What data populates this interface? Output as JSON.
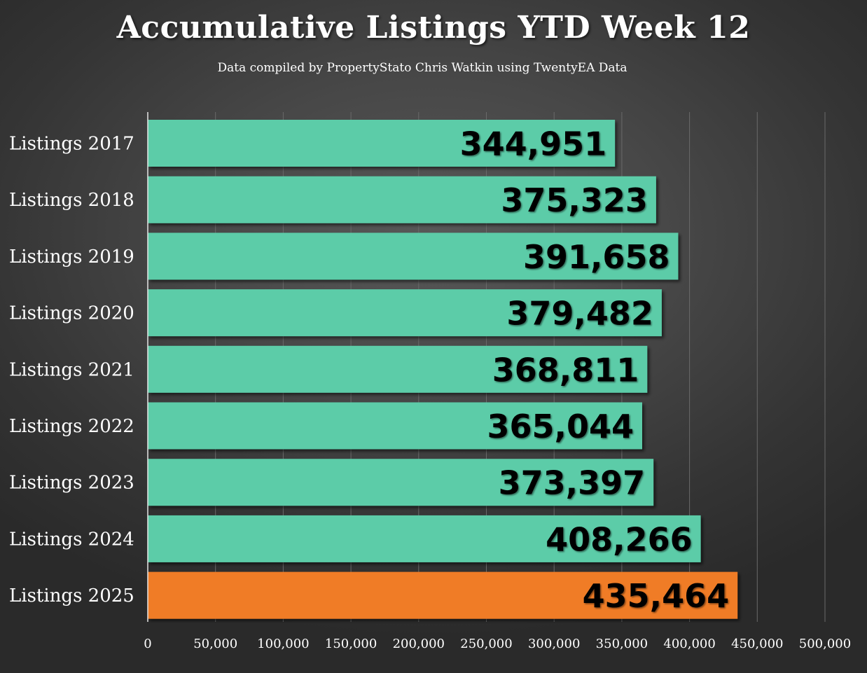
{
  "chart_data": {
    "type": "bar",
    "orientation": "horizontal",
    "title": "Accumulative Listings YTD Week 12",
    "subtitle": "Data compiled by PropertyStato Chris Watkin using TwentyEA Data",
    "categories": [
      "Listings 2017",
      "Listings 2018",
      "Listings 2019",
      "Listings 2020",
      "Listings 2021",
      "Listings 2022",
      "Listings 2023",
      "Listings 2024",
      "Listings 2025"
    ],
    "values": [
      344951,
      375323,
      391658,
      379482,
      368811,
      365044,
      373397,
      408266,
      435464
    ],
    "data_labels": [
      "344,951",
      "375,323",
      "391,658",
      "379,482",
      "368,811",
      "365,044",
      "373,397",
      "408,266",
      "435,464"
    ],
    "bar_colors": [
      "#5bcca8",
      "#5bcca8",
      "#5bcca8",
      "#5bcca8",
      "#5bcca8",
      "#5bcca8",
      "#5bcca8",
      "#5bcca8",
      "#f07c28"
    ],
    "xlim": [
      0,
      500000
    ],
    "x_ticks": [
      0,
      50000,
      100000,
      150000,
      200000,
      250000,
      300000,
      350000,
      400000,
      450000,
      500000
    ],
    "x_tick_labels": [
      "0",
      "50,000",
      "100,000",
      "150,000",
      "200,000",
      "250,000",
      "300,000",
      "350,000",
      "400,000",
      "450,000",
      "500,000"
    ],
    "grid": "vertical",
    "legend": "none"
  },
  "colors": {
    "gridline": "#6a6a6a",
    "axis": "#e6e6e6",
    "text": "#ffffff",
    "data_label": "#000000"
  }
}
